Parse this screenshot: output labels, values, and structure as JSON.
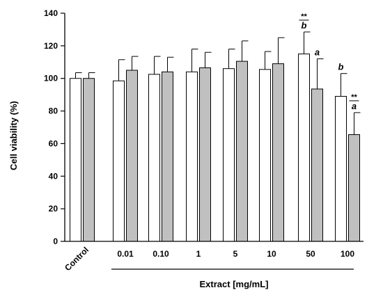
{
  "chart_data": {
    "type": "bar",
    "ylabel": "Cell viability (%)",
    "xlabel": "Extract [mg/mL]",
    "ylim": [
      0,
      140
    ],
    "yticks": [
      0,
      20,
      40,
      60,
      80,
      100,
      120,
      140
    ],
    "categories": [
      "Control",
      "0.01",
      "0.10",
      "1",
      "5",
      "10",
      "50",
      "100"
    ],
    "series": [
      {
        "color": "#ffffff",
        "values": [
          100,
          98.5,
          102.5,
          104,
          106,
          105.5,
          115,
          89
        ],
        "errors": [
          3.5,
          13,
          11,
          14,
          12,
          11,
          13.5,
          14
        ]
      },
      {
        "color": "#c0c0c0",
        "values": [
          100,
          105,
          104,
          106.5,
          110.5,
          109,
          93.5,
          65.5
        ],
        "errors": [
          3.5,
          8.5,
          9,
          9.5,
          12.5,
          16,
          18.5,
          13.5
        ]
      }
    ],
    "annotations": [
      {
        "category": "50",
        "series": 0,
        "letter": "b",
        "stars": "**"
      },
      {
        "category": "50",
        "series": 1,
        "letter": "a",
        "stars": ""
      },
      {
        "category": "100",
        "series": 0,
        "letter": "b",
        "stars": ""
      },
      {
        "category": "100",
        "series": 1,
        "letter": "a",
        "stars": "**"
      }
    ],
    "grid": false
  }
}
